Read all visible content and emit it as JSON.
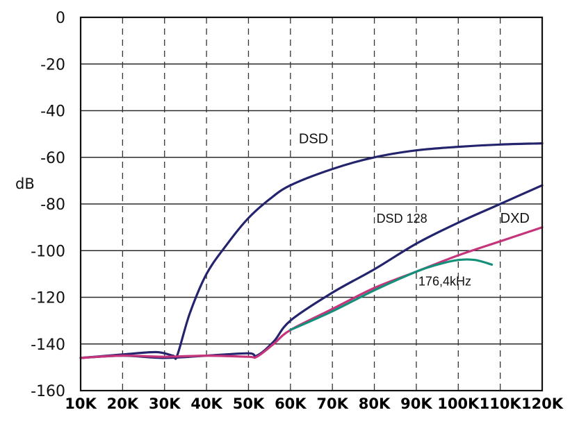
{
  "chart_data": {
    "type": "line",
    "title": "",
    "xlabel": "",
    "ylabel": "dB",
    "x_tick_labels": [
      "10K",
      "20K",
      "30K",
      "40K",
      "50K",
      "60K",
      "70K",
      "80K",
      "90K",
      "100K",
      "110K",
      "120K"
    ],
    "xlim": [
      10000,
      120000
    ],
    "ylim": [
      -160,
      0
    ],
    "y_ticks": [
      0,
      -20,
      -40,
      -60,
      -80,
      -100,
      -120,
      -140,
      -160
    ],
    "grid": {
      "horizontal": "solid",
      "vertical": "dashed"
    },
    "legend": "none (curves labelled directly)",
    "series": [
      {
        "name": "DSD",
        "color": "#24246e",
        "x": [
          10000,
          20000,
          28000,
          32000,
          33000,
          36000,
          40000,
          45000,
          50000,
          55000,
          60000,
          70000,
          80000,
          90000,
          100000,
          110000,
          120000
        ],
        "y": [
          -146,
          -144.5,
          -143.5,
          -145,
          -145,
          -127,
          -110,
          -97,
          -86,
          -78,
          -72,
          -65,
          -60,
          -57,
          -55.5,
          -54.5,
          -54
        ]
      },
      {
        "name": "DSD 128",
        "color": "#24246e",
        "x": [
          10000,
          20000,
          30000,
          40000,
          50000,
          52000,
          56000,
          60000,
          70000,
          80000,
          90000,
          100000,
          110000,
          120000
        ],
        "y": [
          -146,
          -145,
          -146,
          -145,
          -144,
          -145,
          -139,
          -130,
          -118,
          -108,
          -97,
          -88,
          -80,
          -72
        ]
      },
      {
        "name": "DXD",
        "color": "#c5357c",
        "x": [
          10000,
          20000,
          30000,
          40000,
          50000,
          52000,
          56000,
          60000,
          70000,
          80000,
          90000,
          100000,
          110000,
          120000
        ],
        "y": [
          -146,
          -145,
          -145.5,
          -145,
          -145.5,
          -145.5,
          -140,
          -134,
          -125,
          -116,
          -109,
          -102,
          -96,
          -90
        ]
      },
      {
        "name": "176,4kHz",
        "color": "#14907a",
        "x": [
          60000,
          70000,
          80000,
          90000,
          95000,
          100000,
          104000,
          108000
        ],
        "y": [
          -134,
          -126,
          -117,
          -109,
          -106,
          -104,
          -104,
          -106
        ]
      }
    ],
    "annotations": [
      {
        "text": "DSD",
        "x": 62000,
        "y": -54
      },
      {
        "text": "DSD 128",
        "x": 80500,
        "y": -88
      },
      {
        "text": "DXD",
        "x": 110000,
        "y": -88
      },
      {
        "text": "176,4kHz",
        "x": 90500,
        "y": -115
      }
    ]
  }
}
